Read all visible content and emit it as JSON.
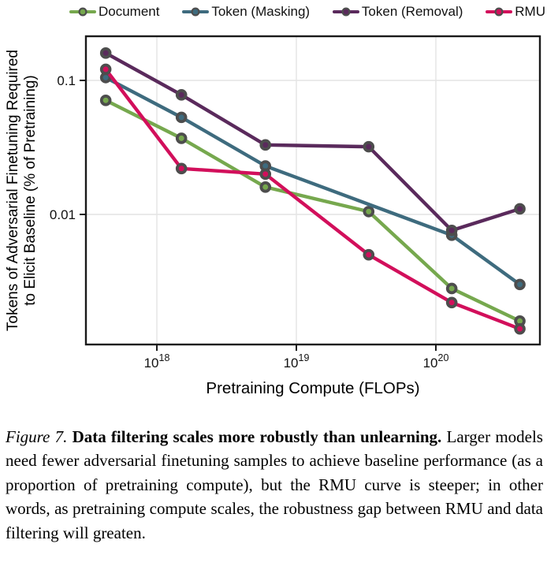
{
  "chart_data": {
    "type": "line",
    "log_x": true,
    "log_y": true,
    "xlabel": "Pretraining Compute (FLOPs)",
    "ylabel_lines": [
      "Tokens of Adversarial Finetuning Required",
      "to Elicit Baseline (% of Pretraining)"
    ],
    "xlim": [
      3.1e+17,
      5.57e+20
    ],
    "ylim": [
      0.00107,
      0.2135
    ],
    "grid": true,
    "legend_position": "top",
    "x_ticks": [
      {
        "value": 1e+18,
        "base": "10",
        "exp": "18"
      },
      {
        "value": 1e+19,
        "base": "10",
        "exp": "19"
      },
      {
        "value": 1e+20,
        "base": "10",
        "exp": "20"
      }
    ],
    "y_ticks": [
      {
        "value": 0.1,
        "label": "0.1"
      },
      {
        "value": 0.01,
        "label": "0.01"
      }
    ],
    "series": [
      {
        "name": "Document",
        "color": "#76a84e",
        "points": [
          [
            4.3e+17,
            0.071
          ],
          [
            1.5e+18,
            0.037
          ],
          [
            6e+18,
            0.016
          ],
          [
            3.3e+19,
            0.0105
          ],
          [
            1.3e+20,
            0.0028
          ],
          [
            4e+20,
            0.0016
          ]
        ]
      },
      {
        "name": "Token (Masking)",
        "color": "#3e6b7e",
        "points": [
          [
            4.3e+17,
            0.105
          ],
          [
            1.5e+18,
            0.053
          ],
          [
            6e+18,
            0.023
          ],
          [
            1.3e+20,
            0.007
          ],
          [
            4e+20,
            0.003
          ]
        ]
      },
      {
        "name": "Token (Removal)",
        "color": "#5a2a5c",
        "points": [
          [
            4.3e+17,
            0.16
          ],
          [
            1.5e+18,
            0.078
          ],
          [
            6e+18,
            0.033
          ],
          [
            3.3e+19,
            0.032
          ],
          [
            1.3e+20,
            0.0076
          ],
          [
            4e+20,
            0.011
          ]
        ]
      },
      {
        "name": "RMU",
        "color": "#d20f5b",
        "points": [
          [
            4.3e+17,
            0.121
          ],
          [
            1.5e+18,
            0.022
          ],
          [
            6e+18,
            0.02
          ],
          [
            3.3e+19,
            0.005
          ],
          [
            1.3e+20,
            0.0022
          ],
          [
            4e+20,
            0.0014
          ]
        ]
      }
    ]
  },
  "colors": {
    "marker_edge": "#4d4d4d",
    "axis": "#1a1a1a",
    "grid": "#e4e4e4",
    "text": "#111111"
  },
  "figure": {
    "caption": {
      "figure_label": "Figure 7.",
      "title": "Data filtering scales more robustly than unlearning.",
      "body": "Larger models need fewer adversarial finetuning samples to achieve baseline performance (as a proportion of pretraining compute), but the RMU curve is steeper; in other words, as pretraining compute scales, the robustness gap between RMU and data filtering will greaten."
    }
  }
}
